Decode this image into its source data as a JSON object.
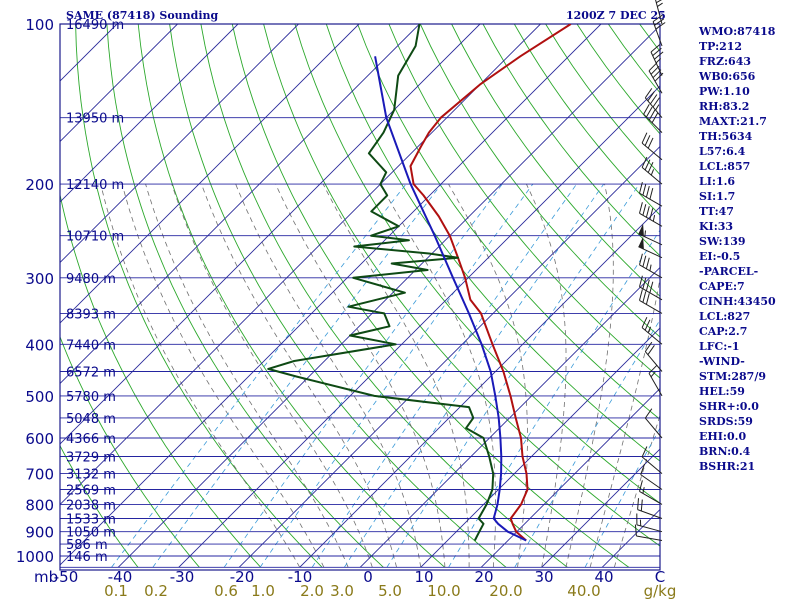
{
  "header": {
    "title": "SAME (87418) Sounding",
    "valid_time": "1200Z  7 DEC 25"
  },
  "indices": [
    "WMO:87418",
    "TP:212",
    "FRZ:643",
    "WB0:656",
    "PW:1.10",
    "RH:83.2",
    "MAXT:21.7",
    "TH:5634",
    "L57:6.4",
    "LCL:857",
    "LI:1.6",
    "SI:1.7",
    "TT:47",
    "KI:33",
    "SW:139",
    "EI:-0.5",
    "-PARCEL-",
    "CAPE:7",
    "CINH:43450",
    "LCL:827",
    "CAP:2.7",
    "LFC:-1",
    "-WIND-",
    "STM:287/9",
    "HEL:59",
    "SHR+:0.0",
    "SRDS:59",
    "EHI:0.0",
    "BRN:0.4",
    "BSHR:21"
  ],
  "colors": {
    "frame": "#1c1c8c",
    "isobar": "#2424a0",
    "isotherm": "#2a2a9a",
    "dry_adiabat": "#2ca82c",
    "moist_adiabat": "#707070",
    "mixing_ratio": "#3a9ad8",
    "temperature": "#b01010",
    "dewpoint": "#0e4a14",
    "parcel": "#1a1ab8",
    "wind_barb": "#202020",
    "tick_label": "#0a0a8c",
    "mixing_label": "#8a7a1a"
  },
  "chart_data": {
    "type": "skew-t log-p sounding",
    "station": "SAME (87418)",
    "time": "1200Z 7 DEC 25",
    "pressure_axis": {
      "unit": "mb",
      "ticks": [
        100,
        200,
        300,
        400,
        500,
        600,
        700,
        800,
        900,
        1000
      ],
      "range": [
        100,
        1050
      ],
      "scale": "log"
    },
    "temperature_axis": {
      "unit": "C",
      "ticks": [
        -50,
        -40,
        -30,
        -20,
        -10,
        0,
        10,
        20,
        30,
        40
      ],
      "skew": "45 degrees"
    },
    "mixing_ratio_axis": {
      "unit": "g/kg",
      "ticks": [
        "0.1",
        "0.2",
        "0.6",
        "1.0",
        "2.0",
        "3.0",
        "5.0",
        "10.0",
        "20.0",
        "40.0"
      ]
    },
    "height_labels": [
      {
        "p": 100,
        "label": "16490 m"
      },
      {
        "p": 150,
        "label": "13950 m"
      },
      {
        "p": 200,
        "label": "12140 m"
      },
      {
        "p": 250,
        "label": "10710 m"
      },
      {
        "p": 300,
        "label": "9480 m"
      },
      {
        "p": 350,
        "label": "8393 m"
      },
      {
        "p": 400,
        "label": "7440 m"
      },
      {
        "p": 450,
        "label": "6572 m"
      },
      {
        "p": 500,
        "label": "5780 m"
      },
      {
        "p": 550,
        "label": "5048 m"
      },
      {
        "p": 600,
        "label": "4366 m"
      },
      {
        "p": 650,
        "label": "3729 m"
      },
      {
        "p": 700,
        "label": "3132 m"
      },
      {
        "p": 750,
        "label": "2569 m"
      },
      {
        "p": 800,
        "label": "2038 m"
      },
      {
        "p": 850,
        "label": "1533 m"
      },
      {
        "p": 900,
        "label": "1050 m"
      },
      {
        "p": 950,
        "label": "586 m"
      },
      {
        "p": 1000,
        "label": "146 m"
      }
    ],
    "series": [
      {
        "name": "temperature",
        "points": [
          [
            935,
            23.0
          ],
          [
            900,
            19.9
          ],
          [
            870,
            18.0
          ],
          [
            850,
            16.8
          ],
          [
            800,
            16.2
          ],
          [
            750,
            14.8
          ],
          [
            700,
            12.0
          ],
          [
            650,
            8.5
          ],
          [
            600,
            5.2
          ],
          [
            550,
            1.0
          ],
          [
            500,
            -3.5
          ],
          [
            450,
            -8.7
          ],
          [
            400,
            -15.0
          ],
          [
            350,
            -22.0
          ],
          [
            330,
            -26.0
          ],
          [
            300,
            -30.5
          ],
          [
            275,
            -35.0
          ],
          [
            250,
            -40.0
          ],
          [
            230,
            -45.0
          ],
          [
            210,
            -51.0
          ],
          [
            200,
            -54.5
          ],
          [
            185,
            -58.0
          ],
          [
            170,
            -59.5
          ],
          [
            160,
            -60.5
          ],
          [
            150,
            -61.0
          ],
          [
            130,
            -60.0
          ],
          [
            115,
            -58.0
          ],
          [
            100,
            -55.0
          ]
        ]
      },
      {
        "name": "dewpoint",
        "points": [
          [
            935,
            14.5
          ],
          [
            900,
            13.8
          ],
          [
            870,
            13.2
          ],
          [
            850,
            11.5
          ],
          [
            800,
            10.5
          ],
          [
            750,
            9.0
          ],
          [
            700,
            6.5
          ],
          [
            650,
            3.0
          ],
          [
            600,
            -1.0
          ],
          [
            575,
            -5.5
          ],
          [
            550,
            -6.0
          ],
          [
            525,
            -8.5
          ],
          [
            500,
            -26.0
          ],
          [
            460,
            -42.0
          ],
          [
            445,
            -48.0
          ],
          [
            430,
            -45.0
          ],
          [
            400,
            -31.0
          ],
          [
            385,
            -40.0
          ],
          [
            370,
            -35.0
          ],
          [
            350,
            -38.0
          ],
          [
            340,
            -45.0
          ],
          [
            320,
            -38.0
          ],
          [
            300,
            -49.0
          ],
          [
            290,
            -38.0
          ],
          [
            282,
            -45.0
          ],
          [
            275,
            -35.0
          ],
          [
            270,
            -40.5
          ],
          [
            262,
            -54.0
          ],
          [
            255,
            -46.0
          ],
          [
            250,
            -53.0
          ],
          [
            240,
            -50.0
          ],
          [
            225,
            -57.0
          ],
          [
            210,
            -57.0
          ],
          [
            200,
            -60.0
          ],
          [
            190,
            -61.0
          ],
          [
            175,
            -67.0
          ],
          [
            160,
            -68.0
          ],
          [
            145,
            -70.0
          ],
          [
            125,
            -75.0
          ],
          [
            110,
            -77.0
          ],
          [
            100,
            -80.0
          ]
        ]
      },
      {
        "name": "parcel",
        "points": [
          [
            935,
            23.0
          ],
          [
            900,
            18.5
          ],
          [
            870,
            15.6
          ],
          [
            850,
            14.0
          ],
          [
            800,
            12.3
          ],
          [
            750,
            10.2
          ],
          [
            700,
            7.8
          ],
          [
            650,
            5.0
          ],
          [
            600,
            1.8
          ],
          [
            550,
            -1.8
          ],
          [
            500,
            -6.0
          ],
          [
            450,
            -10.8
          ],
          [
            400,
            -16.8
          ],
          [
            350,
            -24.0
          ],
          [
            300,
            -32.5
          ],
          [
            250,
            -42.5
          ],
          [
            200,
            -55.0
          ],
          [
            150,
            -70.0
          ],
          [
            115,
            -82.0
          ]
        ]
      }
    ],
    "wind_barbs": [
      {
        "p": 935,
        "dir": 280,
        "spd": 10
      },
      {
        "p": 900,
        "dir": 285,
        "spd": 15
      },
      {
        "p": 850,
        "dir": 290,
        "spd": 20
      },
      {
        "p": 800,
        "dir": 300,
        "spd": 15
      },
      {
        "p": 750,
        "dir": 305,
        "spd": 10
      },
      {
        "p": 700,
        "dir": 310,
        "spd": 10
      },
      {
        "p": 600,
        "dir": 320,
        "spd": 10
      },
      {
        "p": 500,
        "dir": 330,
        "spd": 15
      },
      {
        "p": 450,
        "dir": 320,
        "spd": 20
      },
      {
        "p": 400,
        "dir": 310,
        "spd": 25
      },
      {
        "p": 350,
        "dir": 300,
        "spd": 30
      },
      {
        "p": 330,
        "dir": 300,
        "spd": 40
      },
      {
        "p": 300,
        "dir": 300,
        "spd": 35
      },
      {
        "p": 275,
        "dir": 295,
        "spd": 50
      },
      {
        "p": 260,
        "dir": 295,
        "spd": 55
      },
      {
        "p": 240,
        "dir": 300,
        "spd": 45
      },
      {
        "p": 220,
        "dir": 300,
        "spd": 40
      },
      {
        "p": 200,
        "dir": 310,
        "spd": 35
      },
      {
        "p": 180,
        "dir": 310,
        "spd": 30
      },
      {
        "p": 160,
        "dir": 315,
        "spd": 40
      },
      {
        "p": 150,
        "dir": 320,
        "spd": 45
      },
      {
        "p": 135,
        "dir": 330,
        "spd": 40
      },
      {
        "p": 125,
        "dir": 335,
        "spd": 35
      },
      {
        "p": 110,
        "dir": 340,
        "spd": 30
      },
      {
        "p": 100,
        "dir": 345,
        "spd": 25
      }
    ]
  }
}
